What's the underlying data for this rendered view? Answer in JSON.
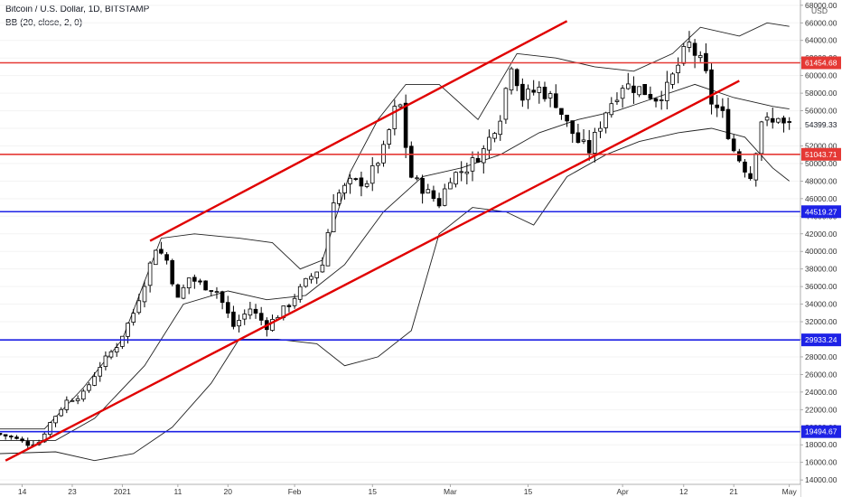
{
  "legend": {
    "symbol": "Bitcoin / U.S. Dollar, 1D, BITSTAMP",
    "indicator": "BB (20, close, 2, 0)"
  },
  "chart_data": {
    "type": "candlestick",
    "currency": "USD",
    "y_range": [
      13500,
      68600
    ],
    "y_ticks": [
      "14000.00",
      "16000.00",
      "18000.00",
      "20000.00",
      "22000.00",
      "24000.00",
      "26000.00",
      "28000.00",
      "30000.00",
      "32000.00",
      "34000.00",
      "36000.00",
      "38000.00",
      "40000.00",
      "42000.00",
      "44000.00",
      "46000.00",
      "48000.00",
      "50000.00",
      "52000.00",
      "54000.00",
      "56000.00",
      "58000.00",
      "60000.00",
      "62000.00",
      "64000.00",
      "66000.00",
      "68000.00"
    ],
    "x_range": [
      "2020-12-10",
      "2021-05-03"
    ],
    "x_ticks": [
      {
        "label": "14",
        "date": "2020-12-14"
      },
      {
        "label": "23",
        "date": "2020-12-23"
      },
      {
        "label": "2021",
        "date": "2021-01-01"
      },
      {
        "label": "11",
        "date": "2021-01-11"
      },
      {
        "label": "20",
        "date": "2021-01-20"
      },
      {
        "label": "Feb",
        "date": "2021-02-01"
      },
      {
        "label": "15",
        "date": "2021-02-15"
      },
      {
        "label": "Mar",
        "date": "2021-03-01"
      },
      {
        "label": "15",
        "date": "2021-03-15"
      },
      {
        "label": "Apr",
        "date": "2021-04-01"
      },
      {
        "label": "12",
        "date": "2021-04-12"
      },
      {
        "label": "21",
        "date": "2021-04-21"
      },
      {
        "label": "May",
        "date": "2021-05-01"
      }
    ],
    "price_path": [
      [
        "2020-12-10",
        19300
      ],
      [
        "2020-12-13",
        18900
      ],
      [
        "2020-12-16",
        18100
      ],
      [
        "2020-12-18",
        18300
      ],
      [
        "2020-12-20",
        20500
      ],
      [
        "2020-12-23",
        23000
      ],
      [
        "2020-12-26",
        23800
      ],
      [
        "2020-12-29",
        27000
      ],
      [
        "2021-01-01",
        29300
      ],
      [
        "2021-01-04",
        33000
      ],
      [
        "2021-01-06",
        36500
      ],
      [
        "2021-01-08",
        40500
      ],
      [
        "2021-01-10",
        39000
      ],
      [
        "2021-01-12",
        34500
      ],
      [
        "2021-01-14",
        37000
      ],
      [
        "2021-01-16",
        36300
      ],
      [
        "2021-01-19",
        35500
      ],
      [
        "2021-01-22",
        31500
      ],
      [
        "2021-01-25",
        33500
      ],
      [
        "2021-01-28",
        31500
      ],
      [
        "2021-02-01",
        34000
      ],
      [
        "2021-02-04",
        36500
      ],
      [
        "2021-02-07",
        38500
      ],
      [
        "2021-02-09",
        46000
      ],
      [
        "2021-02-12",
        47800
      ],
      [
        "2021-02-15",
        48000
      ],
      [
        "2021-02-18",
        51500
      ],
      [
        "2021-02-20",
        56000
      ],
      [
        "2021-02-21",
        56500
      ],
      [
        "2021-02-22",
        52000
      ],
      [
        "2021-02-23",
        48500
      ],
      [
        "2021-02-25",
        47200
      ],
      [
        "2021-02-28",
        45500
      ],
      [
        "2021-03-02",
        48500
      ],
      [
        "2021-03-05",
        49500
      ],
      [
        "2021-03-08",
        51500
      ],
      [
        "2021-03-11",
        55500
      ],
      [
        "2021-03-13",
        61500
      ],
      [
        "2021-03-15",
        57500
      ],
      [
        "2021-03-18",
        58500
      ],
      [
        "2021-03-21",
        57000
      ],
      [
        "2021-03-23",
        54500
      ],
      [
        "2021-03-25",
        52500
      ],
      [
        "2021-03-27",
        51500
      ],
      [
        "2021-03-30",
        56000
      ],
      [
        "2021-04-02",
        59000
      ],
      [
        "2021-04-05",
        58500
      ],
      [
        "2021-04-08",
        57500
      ],
      [
        "2021-04-10",
        58500
      ],
      [
        "2021-04-13",
        62500
      ],
      [
        "2021-04-14",
        63500
      ],
      [
        "2021-04-16",
        61500
      ],
      [
        "2021-04-17",
        60000
      ],
      [
        "2021-04-18",
        57000
      ],
      [
        "2021-04-20",
        55500
      ],
      [
        "2021-04-22",
        51500
      ],
      [
        "2021-04-24",
        49500
      ],
      [
        "2021-04-25",
        48500
      ],
      [
        "2021-04-27",
        55000
      ],
      [
        "2021-04-29",
        54500
      ],
      [
        "2021-04-30",
        55500
      ],
      [
        "2021-05-01",
        54400
      ]
    ],
    "bollinger_bands": {
      "params": "20, close, 2, 0",
      "upper": [
        [
          "2020-12-10",
          19800
        ],
        [
          "2020-12-18",
          19800
        ],
        [
          "2020-12-25",
          24500
        ],
        [
          "2021-01-01",
          30000
        ],
        [
          "2021-01-08",
          41500
        ],
        [
          "2021-01-14",
          42000
        ],
        [
          "2021-01-22",
          41500
        ],
        [
          "2021-01-28",
          41000
        ],
        [
          "2021-02-02",
          38000
        ],
        [
          "2021-02-06",
          39000
        ],
        [
          "2021-02-11",
          49000
        ],
        [
          "2021-02-16",
          55000
        ],
        [
          "2021-02-21",
          59000
        ],
        [
          "2021-02-27",
          59000
        ],
        [
          "2021-03-06",
          55000
        ],
        [
          "2021-03-13",
          62500
        ],
        [
          "2021-03-20",
          62000
        ],
        [
          "2021-03-27",
          61000
        ],
        [
          "2021-04-03",
          60500
        ],
        [
          "2021-04-10",
          62500
        ],
        [
          "2021-04-15",
          65500
        ],
        [
          "2021-04-22",
          64500
        ],
        [
          "2021-04-27",
          66000
        ],
        [
          "2021-05-01",
          65600
        ]
      ],
      "middle": [
        [
          "2020-12-10",
          18500
        ],
        [
          "2020-12-20",
          18500
        ],
        [
          "2020-12-27",
          21000
        ],
        [
          "2021-01-05",
          27000
        ],
        [
          "2021-01-12",
          34000
        ],
        [
          "2021-01-20",
          35500
        ],
        [
          "2021-01-27",
          34500
        ],
        [
          "2021-02-03",
          35000
        ],
        [
          "2021-02-10",
          38500
        ],
        [
          "2021-02-17",
          44500
        ],
        [
          "2021-02-24",
          48500
        ],
        [
          "2021-03-03",
          49500
        ],
        [
          "2021-03-10",
          51000
        ],
        [
          "2021-03-17",
          53500
        ],
        [
          "2021-03-24",
          55000
        ],
        [
          "2021-03-31",
          56000
        ],
        [
          "2021-04-07",
          57500
        ],
        [
          "2021-04-14",
          59000
        ],
        [
          "2021-04-21",
          57500
        ],
        [
          "2021-04-28",
          56500
        ],
        [
          "2021-05-01",
          56200
        ]
      ],
      "lower": [
        [
          "2020-12-10",
          17000
        ],
        [
          "2020-12-20",
          17200
        ],
        [
          "2020-12-27",
          16200
        ],
        [
          "2021-01-03",
          17000
        ],
        [
          "2021-01-10",
          20000
        ],
        [
          "2021-01-17",
          25000
        ],
        [
          "2021-01-22",
          30000
        ],
        [
          "2021-01-29",
          30000
        ],
        [
          "2021-02-05",
          29500
        ],
        [
          "2021-02-10",
          27000
        ],
        [
          "2021-02-16",
          28000
        ],
        [
          "2021-02-22",
          31000
        ],
        [
          "2021-02-27",
          42000
        ],
        [
          "2021-03-05",
          45000
        ],
        [
          "2021-03-11",
          44500
        ],
        [
          "2021-03-16",
          43000
        ],
        [
          "2021-03-22",
          48500
        ],
        [
          "2021-03-29",
          51000
        ],
        [
          "2021-04-04",
          52500
        ],
        [
          "2021-04-11",
          53500
        ],
        [
          "2021-04-17",
          54000
        ],
        [
          "2021-04-23",
          53000
        ],
        [
          "2021-04-28",
          49500
        ],
        [
          "2021-05-01",
          48000
        ]
      ]
    },
    "horizontal_levels": [
      {
        "value": 61454.68,
        "label": "61454.68",
        "color": "#e53935"
      },
      {
        "value": 51043.71,
        "label": "51043.71",
        "color": "#e53935"
      },
      {
        "value": 44519.27,
        "label": "44519.27",
        "color": "#1e22e6"
      },
      {
        "value": 29933.24,
        "label": "29933.24",
        "color": "#1e22e6"
      },
      {
        "value": 19494.67,
        "label": "19494.67",
        "color": "#1e22e6"
      }
    ],
    "trendlines": [
      {
        "from": [
          "2021-01-06",
          41200
        ],
        "to": [
          "2021-03-22",
          66200
        ],
        "color": "#e00000"
      },
      {
        "from": [
          "2020-12-11",
          16200
        ],
        "to": [
          "2021-04-22",
          59400
        ],
        "color": "#e00000"
      }
    ],
    "current_price": {
      "value": 54399.33,
      "label": "54399.33"
    }
  }
}
